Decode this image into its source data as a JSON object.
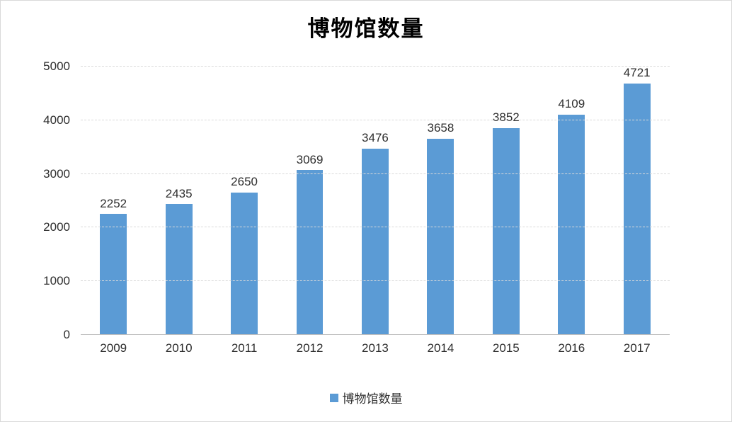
{
  "chart_data": {
    "type": "bar",
    "title": "博物馆数量",
    "categories": [
      "2009",
      "2010",
      "2011",
      "2012",
      "2013",
      "2014",
      "2015",
      "2016",
      "2017"
    ],
    "values": [
      2252,
      2435,
      2650,
      3069,
      3476,
      3658,
      3852,
      4109,
      4721
    ],
    "series_name": "博物馆数量",
    "xlabel": "",
    "ylabel": "",
    "ylim": [
      0,
      5000
    ],
    "yticks": [
      0,
      1000,
      2000,
      3000,
      4000,
      5000
    ],
    "grid": true,
    "data_labels": true,
    "legend_position": "bottom",
    "bar_color": "#5b9bd5",
    "gridline_color": "#d9d9d9",
    "axis_line_color": "#bfbfbf",
    "text_color": "#2e2e2e"
  },
  "legend": {
    "label": "博物馆数量",
    "swatch_color": "#5b9bd5"
  }
}
